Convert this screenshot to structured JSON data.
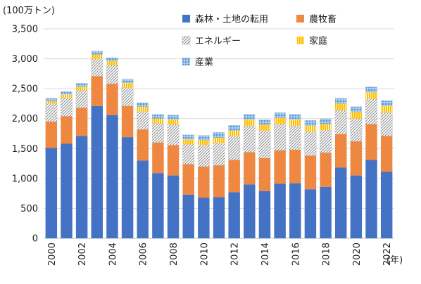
{
  "chart_data": {
    "type": "bar",
    "stacked": true,
    "y_unit_label": "(100万トン)",
    "x_unit_label": "(年)",
    "ylim": [
      0,
      3500
    ],
    "y_ticks": [
      0,
      500,
      1000,
      1500,
      2000,
      2500,
      3000,
      3500
    ],
    "y_tick_labels": [
      "0",
      "500",
      "1,000",
      "1,500",
      "2,000",
      "2,500",
      "3,000",
      "3,500"
    ],
    "categories": [
      "2000",
      "2001",
      "2002",
      "2003",
      "2004",
      "2005",
      "2006",
      "2007",
      "2008",
      "2009",
      "2010",
      "2011",
      "2012",
      "2013",
      "2014",
      "2015",
      "2016",
      "2017",
      "2018",
      "2019",
      "2020",
      "2021",
      "2022"
    ],
    "x_tick_labels": [
      "2000",
      "2002",
      "2004",
      "2006",
      "2008",
      "2010",
      "2012",
      "2014",
      "2016",
      "2018",
      "2020",
      "2022"
    ],
    "grid": true,
    "legend_position": "top-right",
    "series": [
      {
        "name": "森林・土地の転用",
        "color": "#4472C4",
        "pattern": "solid",
        "values": [
          1510,
          1580,
          1710,
          2210,
          2060,
          1690,
          1300,
          1090,
          1050,
          730,
          680,
          690,
          770,
          900,
          790,
          910,
          920,
          820,
          860,
          1180,
          1050,
          1310,
          1110
        ]
      },
      {
        "name": "農牧畜",
        "color": "#ED7D31",
        "pattern": "dots",
        "values": [
          440,
          460,
          470,
          500,
          520,
          520,
          520,
          510,
          510,
          510,
          520,
          530,
          540,
          540,
          550,
          560,
          560,
          560,
          570,
          560,
          570,
          600,
          600
        ]
      },
      {
        "name": "エネルギー",
        "color": "#A6A6A6",
        "pattern": "hatch",
        "values": [
          300,
          310,
          290,
          290,
          310,
          310,
          300,
          320,
          340,
          330,
          360,
          370,
          400,
          440,
          460,
          440,
          400,
          400,
          380,
          400,
          380,
          420,
          390
        ]
      },
      {
        "name": "家庭",
        "color": "#FFC000",
        "pattern": "vlines",
        "values": [
          40,
          50,
          60,
          70,
          70,
          70,
          80,
          80,
          80,
          80,
          80,
          90,
          90,
          100,
          100,
          100,
          100,
          100,
          100,
          110,
          110,
          110,
          110
        ]
      },
      {
        "name": "産業",
        "color": "#5B9BD5",
        "pattern": "grid",
        "values": [
          50,
          50,
          60,
          60,
          60,
          70,
          70,
          70,
          80,
          80,
          80,
          90,
          90,
          90,
          80,
          90,
          90,
          90,
          90,
          90,
          90,
          90,
          90
        ]
      }
    ]
  }
}
